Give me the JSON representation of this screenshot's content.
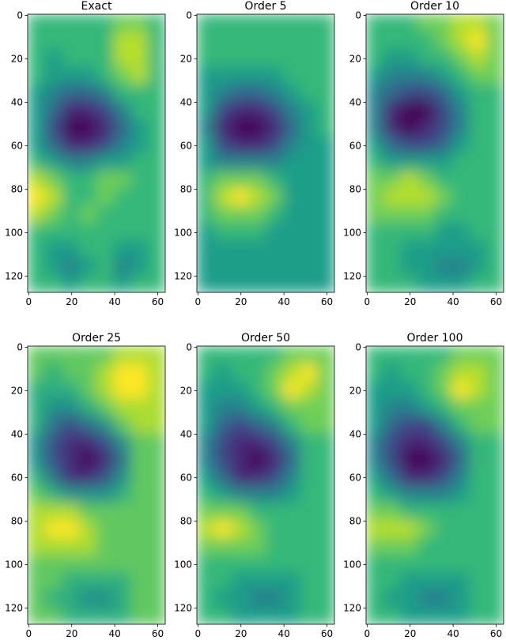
{
  "chart_data": [
    {
      "type": "heatmap",
      "title": "Exact",
      "colormap": "viridis",
      "xlim": [
        -0.5,
        63.5
      ],
      "ylim": [
        127.5,
        -0.5
      ],
      "xticks": [
        0,
        20,
        40,
        60
      ],
      "yticks": [
        0,
        20,
        40,
        60,
        80,
        100,
        120
      ],
      "z": [
        [
          6,
          6,
          6,
          6,
          6,
          7,
          7,
          6
        ],
        [
          6,
          6,
          6,
          6,
          6,
          8,
          8,
          6
        ],
        [
          6,
          5,
          6,
          6,
          6,
          8,
          8,
          6
        ],
        [
          6,
          5,
          5,
          5,
          6,
          7,
          8,
          6
        ],
        [
          5,
          4,
          3,
          3,
          4,
          6,
          6,
          6
        ],
        [
          5,
          3,
          1,
          1,
          2,
          4,
          6,
          6
        ],
        [
          5,
          2,
          0,
          0,
          1,
          3,
          5,
          6
        ],
        [
          5,
          3,
          1,
          1,
          2,
          4,
          5,
          6
        ],
        [
          6,
          5,
          4,
          4,
          5,
          5,
          6,
          6
        ],
        [
          8,
          7,
          6,
          6,
          7,
          7,
          6,
          6
        ],
        [
          9,
          8,
          6,
          6,
          7,
          6,
          6,
          6
        ],
        [
          8,
          7,
          6,
          7,
          6,
          6,
          6,
          6
        ],
        [
          6,
          6,
          6,
          6,
          6,
          6,
          6,
          6
        ],
        [
          6,
          5,
          5,
          6,
          6,
          5,
          5,
          6
        ],
        [
          6,
          5,
          4,
          5,
          6,
          4,
          5,
          6
        ],
        [
          6,
          6,
          5,
          6,
          6,
          5,
          6,
          6
        ]
      ]
    },
    {
      "type": "heatmap",
      "title": "Order 5",
      "colormap": "viridis",
      "xlim": [
        -0.5,
        63.5
      ],
      "ylim": [
        127.5,
        -0.5
      ],
      "xticks": [
        0,
        20,
        40,
        60
      ],
      "yticks": [
        0,
        20,
        40,
        60,
        80,
        100,
        120
      ],
      "z": [
        [
          6,
          6,
          6,
          6,
          6,
          6,
          6,
          6
        ],
        [
          6,
          6,
          6,
          6,
          6,
          6,
          6,
          6
        ],
        [
          6,
          6,
          6,
          6,
          6,
          6,
          6,
          6
        ],
        [
          5,
          5,
          5,
          5,
          5,
          6,
          6,
          6
        ],
        [
          5,
          4,
          3,
          3,
          4,
          5,
          6,
          6
        ],
        [
          5,
          2,
          1,
          1,
          2,
          4,
          5,
          6
        ],
        [
          4,
          1,
          0,
          0,
          1,
          3,
          5,
          6
        ],
        [
          5,
          2,
          1,
          1,
          2,
          4,
          5,
          5
        ],
        [
          5,
          4,
          4,
          4,
          4,
          5,
          5,
          5
        ],
        [
          6,
          7,
          7,
          7,
          6,
          5,
          5,
          5
        ],
        [
          6,
          8,
          9,
          8,
          7,
          5,
          5,
          5
        ],
        [
          6,
          7,
          7,
          7,
          6,
          5,
          5,
          5
        ],
        [
          5,
          6,
          6,
          6,
          5,
          5,
          5,
          5
        ],
        [
          5,
          5,
          5,
          5,
          5,
          5,
          5,
          5
        ],
        [
          5,
          5,
          5,
          5,
          5,
          5,
          5,
          5
        ],
        [
          5,
          5,
          5,
          5,
          5,
          5,
          5,
          5
        ]
      ]
    },
    {
      "type": "heatmap",
      "title": "Order 10",
      "colormap": "viridis",
      "xlim": [
        -0.5,
        63.5
      ],
      "ylim": [
        127.5,
        -0.5
      ],
      "xticks": [
        0,
        20,
        40,
        60
      ],
      "yticks": [
        0,
        20,
        40,
        60,
        80,
        100,
        120
      ],
      "z": [
        [
          6,
          6,
          6,
          7,
          7,
          8,
          8,
          7
        ],
        [
          6,
          6,
          6,
          6,
          7,
          8,
          9,
          7
        ],
        [
          6,
          5,
          5,
          6,
          6,
          7,
          8,
          7
        ],
        [
          5,
          4,
          4,
          4,
          5,
          6,
          7,
          7
        ],
        [
          4,
          3,
          2,
          2,
          3,
          5,
          6,
          6
        ],
        [
          4,
          1,
          0,
          0,
          2,
          4,
          6,
          6
        ],
        [
          4,
          1,
          0,
          1,
          2,
          4,
          6,
          6
        ],
        [
          5,
          3,
          2,
          2,
          3,
          5,
          6,
          6
        ],
        [
          6,
          5,
          5,
          5,
          5,
          6,
          6,
          6
        ],
        [
          7,
          7,
          8,
          7,
          6,
          6,
          6,
          6
        ],
        [
          7,
          8,
          8,
          8,
          7,
          6,
          6,
          6
        ],
        [
          7,
          7,
          7,
          7,
          6,
          6,
          6,
          6
        ],
        [
          6,
          6,
          6,
          6,
          5,
          5,
          6,
          6
        ],
        [
          6,
          6,
          5,
          5,
          5,
          5,
          5,
          6
        ],
        [
          6,
          6,
          5,
          5,
          4,
          4,
          5,
          6
        ],
        [
          6,
          6,
          6,
          5,
          5,
          5,
          6,
          6
        ]
      ]
    },
    {
      "type": "heatmap",
      "title": "Order 25",
      "colormap": "viridis",
      "xlim": [
        -0.5,
        63.5
      ],
      "ylim": [
        127.5,
        -0.5
      ],
      "xticks": [
        0,
        20,
        40,
        60
      ],
      "yticks": [
        0,
        20,
        40,
        60,
        80,
        100,
        120
      ],
      "z": [
        [
          6,
          6,
          6,
          6,
          6,
          7,
          7,
          7
        ],
        [
          6,
          5,
          6,
          6,
          7,
          8,
          8,
          7
        ],
        [
          5,
          5,
          5,
          6,
          7,
          8,
          8,
          7
        ],
        [
          5,
          4,
          4,
          5,
          6,
          7,
          7,
          7
        ],
        [
          5,
          3,
          2,
          3,
          4,
          6,
          7,
          7
        ],
        [
          4,
          2,
          1,
          1,
          2,
          4,
          6,
          6
        ],
        [
          4,
          2,
          1,
          0,
          1,
          3,
          6,
          6
        ],
        [
          5,
          3,
          1,
          1,
          2,
          4,
          6,
          6
        ],
        [
          6,
          5,
          4,
          4,
          4,
          5,
          6,
          6
        ],
        [
          7,
          7,
          7,
          6,
          6,
          6,
          6,
          6
        ],
        [
          7,
          8,
          8,
          7,
          6,
          6,
          6,
          6
        ],
        [
          7,
          7,
          7,
          7,
          6,
          6,
          6,
          6
        ],
        [
          6,
          6,
          6,
          6,
          6,
          6,
          6,
          6
        ],
        [
          6,
          6,
          5,
          5,
          5,
          5,
          6,
          6
        ],
        [
          6,
          5,
          5,
          4,
          4,
          5,
          6,
          6
        ],
        [
          6,
          6,
          5,
          5,
          5,
          5,
          6,
          6
        ]
      ]
    },
    {
      "type": "heatmap",
      "title": "Order 50",
      "colormap": "viridis",
      "xlim": [
        -0.5,
        63.5
      ],
      "ylim": [
        127.5,
        -0.5
      ],
      "xticks": [
        0,
        20,
        40,
        60
      ],
      "yticks": [
        0,
        20,
        40,
        60,
        80,
        100,
        120
      ],
      "z": [
        [
          6,
          6,
          6,
          6,
          6,
          7,
          7,
          7
        ],
        [
          6,
          5,
          6,
          6,
          7,
          8,
          9,
          7
        ],
        [
          5,
          5,
          5,
          6,
          7,
          9,
          8,
          7
        ],
        [
          5,
          4,
          4,
          5,
          6,
          7,
          7,
          7
        ],
        [
          5,
          3,
          2,
          3,
          4,
          6,
          7,
          7
        ],
        [
          4,
          2,
          1,
          1,
          2,
          4,
          6,
          6
        ],
        [
          4,
          2,
          1,
          0,
          1,
          3,
          6,
          6
        ],
        [
          5,
          3,
          1,
          1,
          2,
          4,
          6,
          6
        ],
        [
          6,
          5,
          4,
          4,
          4,
          5,
          6,
          6
        ],
        [
          7,
          7,
          7,
          6,
          6,
          6,
          6,
          6
        ],
        [
          8,
          9,
          8,
          7,
          6,
          6,
          6,
          6
        ],
        [
          7,
          7,
          7,
          7,
          6,
          6,
          6,
          6
        ],
        [
          6,
          6,
          6,
          6,
          6,
          6,
          6,
          6
        ],
        [
          6,
          6,
          5,
          5,
          5,
          5,
          6,
          6
        ],
        [
          6,
          5,
          5,
          4,
          4,
          5,
          6,
          6
        ],
        [
          6,
          6,
          5,
          5,
          5,
          5,
          6,
          6
        ]
      ]
    },
    {
      "type": "heatmap",
      "title": "Order 100",
      "colormap": "viridis",
      "xlim": [
        -0.5,
        63.5
      ],
      "ylim": [
        127.5,
        -0.5
      ],
      "xticks": [
        0,
        20,
        40,
        60
      ],
      "yticks": [
        0,
        20,
        40,
        60,
        80,
        100,
        120
      ],
      "z": [
        [
          6,
          6,
          6,
          6,
          6,
          7,
          7,
          7
        ],
        [
          6,
          5,
          6,
          6,
          7,
          8,
          8,
          7
        ],
        [
          5,
          5,
          5,
          6,
          7,
          9,
          8,
          7
        ],
        [
          5,
          4,
          4,
          5,
          6,
          7,
          7,
          7
        ],
        [
          5,
          3,
          2,
          2,
          4,
          6,
          7,
          7
        ],
        [
          4,
          2,
          1,
          1,
          2,
          4,
          6,
          6
        ],
        [
          4,
          2,
          0,
          0,
          1,
          3,
          6,
          6
        ],
        [
          5,
          3,
          1,
          1,
          2,
          4,
          6,
          6
        ],
        [
          6,
          5,
          4,
          4,
          4,
          5,
          6,
          6
        ],
        [
          7,
          7,
          6,
          6,
          6,
          6,
          6,
          6
        ],
        [
          8,
          8,
          8,
          7,
          6,
          6,
          6,
          6
        ],
        [
          7,
          7,
          7,
          6,
          6,
          6,
          6,
          6
        ],
        [
          6,
          6,
          6,
          6,
          6,
          6,
          6,
          6
        ],
        [
          6,
          6,
          5,
          5,
          5,
          5,
          6,
          6
        ],
        [
          6,
          5,
          5,
          4,
          4,
          5,
          6,
          6
        ],
        [
          6,
          6,
          5,
          5,
          5,
          5,
          6,
          6
        ]
      ]
    }
  ]
}
